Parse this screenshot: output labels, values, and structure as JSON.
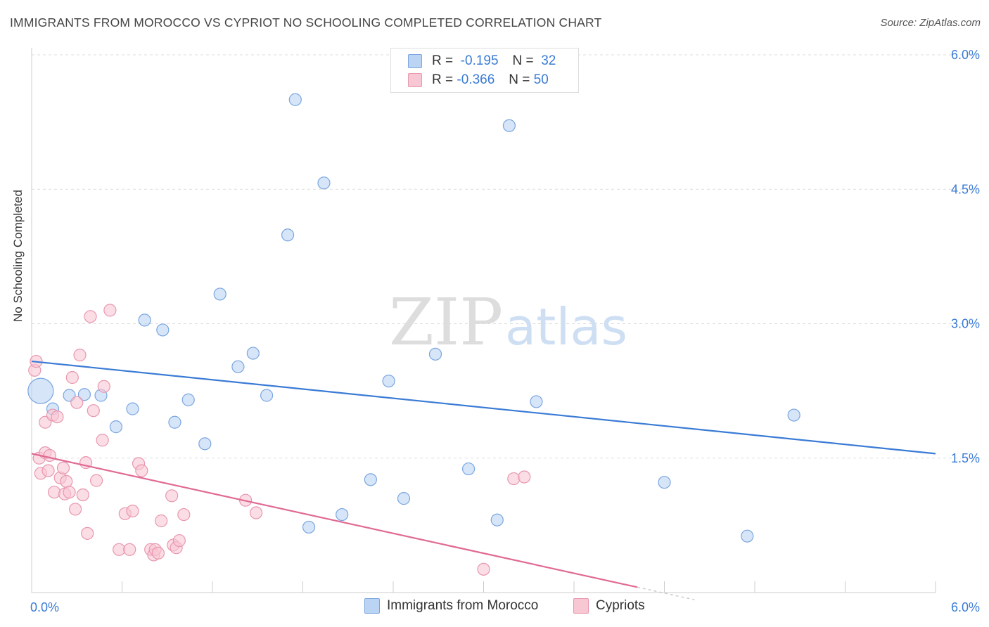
{
  "title": "IMMIGRANTS FROM MOROCCO VS CYPRIOT NO SCHOOLING COMPLETED CORRELATION CHART",
  "source": "Source: ZipAtlas.com",
  "watermark": {
    "zip": "ZIP",
    "atlas": "atlas"
  },
  "legend": {
    "rows": [
      {
        "r_label": "R =",
        "r_value": "-0.195",
        "n_label": "N =",
        "n_value": "32",
        "fill": "#bcd4f3",
        "stroke": "#7aa6e0"
      },
      {
        "r_label": "R =",
        "r_value": "-0.366",
        "n_label": "N =",
        "n_value": "50",
        "fill": "#f8c7d4",
        "stroke": "#e897ae"
      }
    ]
  },
  "chart_data": {
    "type": "scatter",
    "xlabel": "",
    "ylabel": "No Schooling Completed",
    "xlim": [
      0,
      6
    ],
    "ylim": [
      0,
      6
    ],
    "x_tick_labels": [
      {
        "value": 0,
        "label": "0.0%"
      },
      {
        "value": 6,
        "label": "6.0%"
      }
    ],
    "y_tick_labels": [
      {
        "value": 1.5,
        "label": "1.5%"
      },
      {
        "value": 3.0,
        "label": "3.0%"
      },
      {
        "value": 4.5,
        "label": "4.5%"
      },
      {
        "value": 6.0,
        "label": "6.0%"
      }
    ],
    "grid": true,
    "legend_position": "top-center",
    "series": [
      {
        "name": "Immigrants from Morocco",
        "color": "#3a7bd5",
        "fill": "#bcd4f3",
        "stroke": "#7aa6e0",
        "trend": {
          "x": [
            0,
            6
          ],
          "y": [
            2.58,
            1.55
          ]
        },
        "points": [
          {
            "x": 0.06,
            "y": 2.25,
            "big": true
          },
          {
            "x": 0.14,
            "y": 2.05
          },
          {
            "x": 0.25,
            "y": 2.2
          },
          {
            "x": 0.35,
            "y": 2.21
          },
          {
            "x": 0.46,
            "y": 2.2
          },
          {
            "x": 0.56,
            "y": 1.85
          },
          {
            "x": 0.67,
            "y": 2.05
          },
          {
            "x": 0.75,
            "y": 3.04
          },
          {
            "x": 0.87,
            "y": 2.93
          },
          {
            "x": 0.95,
            "y": 1.9
          },
          {
            "x": 1.04,
            "y": 2.15
          },
          {
            "x": 1.15,
            "y": 1.66
          },
          {
            "x": 1.25,
            "y": 3.33
          },
          {
            "x": 1.37,
            "y": 2.52
          },
          {
            "x": 1.47,
            "y": 2.67
          },
          {
            "x": 1.56,
            "y": 2.2
          },
          {
            "x": 1.7,
            "y": 3.99
          },
          {
            "x": 1.75,
            "y": 5.5
          },
          {
            "x": 1.84,
            "y": 0.73
          },
          {
            "x": 1.94,
            "y": 4.57
          },
          {
            "x": 2.06,
            "y": 0.87
          },
          {
            "x": 2.25,
            "y": 1.26
          },
          {
            "x": 2.37,
            "y": 2.36
          },
          {
            "x": 2.47,
            "y": 1.05
          },
          {
            "x": 2.68,
            "y": 2.66
          },
          {
            "x": 2.9,
            "y": 1.38
          },
          {
            "x": 3.09,
            "y": 0.81
          },
          {
            "x": 3.17,
            "y": 5.21
          },
          {
            "x": 3.35,
            "y": 2.13
          },
          {
            "x": 4.2,
            "y": 1.23
          },
          {
            "x": 4.75,
            "y": 0.63
          },
          {
            "x": 5.06,
            "y": 1.98
          }
        ]
      },
      {
        "name": "Cypriots",
        "color": "#e06a94",
        "fill": "#f8c7d4",
        "stroke": "#e897ae",
        "trend": {
          "x": [
            0,
            4.02
          ],
          "y": [
            1.55,
            0.06
          ]
        },
        "trend_dashed_extension": {
          "x": [
            4.02,
            4.4
          ],
          "y": [
            0.06,
            -0.08
          ]
        },
        "points": [
          {
            "x": 0.02,
            "y": 2.48
          },
          {
            "x": 0.03,
            "y": 2.58
          },
          {
            "x": 0.05,
            "y": 1.5
          },
          {
            "x": 0.06,
            "y": 1.33
          },
          {
            "x": 0.09,
            "y": 1.56
          },
          {
            "x": 0.09,
            "y": 1.9
          },
          {
            "x": 0.11,
            "y": 1.36
          },
          {
            "x": 0.12,
            "y": 1.53
          },
          {
            "x": 0.14,
            "y": 1.98
          },
          {
            "x": 0.15,
            "y": 1.12
          },
          {
            "x": 0.17,
            "y": 1.96
          },
          {
            "x": 0.19,
            "y": 1.28
          },
          {
            "x": 0.21,
            "y": 1.39
          },
          {
            "x": 0.22,
            "y": 1.1
          },
          {
            "x": 0.23,
            "y": 1.24
          },
          {
            "x": 0.25,
            "y": 1.12
          },
          {
            "x": 0.27,
            "y": 2.4
          },
          {
            "x": 0.29,
            "y": 0.93
          },
          {
            "x": 0.3,
            "y": 2.12
          },
          {
            "x": 0.32,
            "y": 2.65
          },
          {
            "x": 0.34,
            "y": 1.09
          },
          {
            "x": 0.36,
            "y": 1.45
          },
          {
            "x": 0.37,
            "y": 0.66
          },
          {
            "x": 0.39,
            "y": 3.08
          },
          {
            "x": 0.41,
            "y": 2.03
          },
          {
            "x": 0.43,
            "y": 1.25
          },
          {
            "x": 0.47,
            "y": 1.7
          },
          {
            "x": 0.48,
            "y": 2.3
          },
          {
            "x": 0.52,
            "y": 3.15
          },
          {
            "x": 0.58,
            "y": 0.48
          },
          {
            "x": 0.62,
            "y": 0.88
          },
          {
            "x": 0.65,
            "y": 0.48
          },
          {
            "x": 0.67,
            "y": 0.91
          },
          {
            "x": 0.71,
            "y": 1.44
          },
          {
            "x": 0.73,
            "y": 1.36
          },
          {
            "x": 0.79,
            "y": 0.48
          },
          {
            "x": 0.81,
            "y": 0.42
          },
          {
            "x": 0.82,
            "y": 0.48
          },
          {
            "x": 0.84,
            "y": 0.44
          },
          {
            "x": 0.86,
            "y": 0.8
          },
          {
            "x": 0.93,
            "y": 1.08
          },
          {
            "x": 0.94,
            "y": 0.53
          },
          {
            "x": 0.96,
            "y": 0.5
          },
          {
            "x": 0.98,
            "y": 0.58
          },
          {
            "x": 1.01,
            "y": 0.87
          },
          {
            "x": 1.42,
            "y": 1.03
          },
          {
            "x": 1.49,
            "y": 0.89
          },
          {
            "x": 3.0,
            "y": 0.26
          },
          {
            "x": 3.2,
            "y": 1.27
          },
          {
            "x": 3.27,
            "y": 1.29
          }
        ]
      }
    ]
  }
}
